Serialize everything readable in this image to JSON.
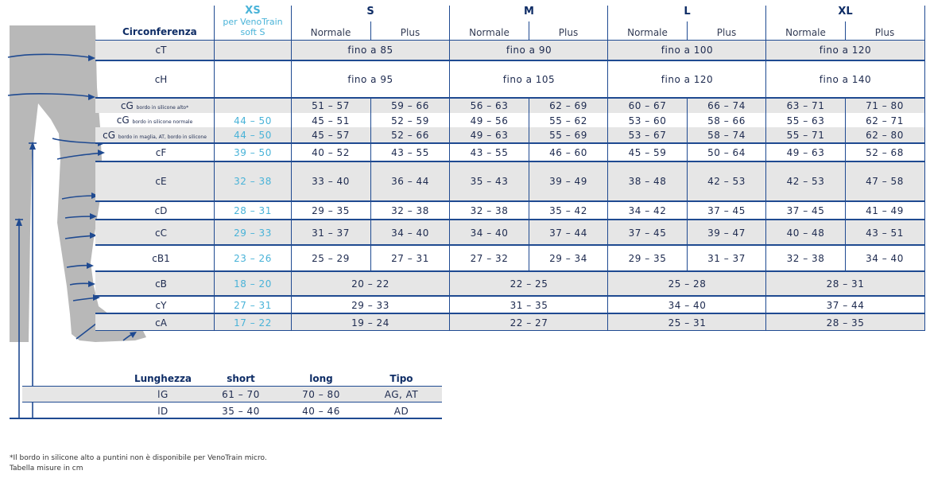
{
  "header": {
    "circonferenza": "Circonferenza",
    "xs": {
      "label": "XS",
      "sub1": "per VenoTrain",
      "sub2": "soft S"
    },
    "sizes": [
      "S",
      "M",
      "L",
      "XL"
    ],
    "normale": "Normale",
    "plus": "Plus"
  },
  "rows": [
    {
      "label": "cT",
      "xs": "",
      "cells": [
        "fino a 85",
        "fino a 90",
        "fino a 100",
        "fino a 120"
      ]
    },
    {
      "label": "cH",
      "xs": "",
      "cells": [
        "fino a 95",
        "fino a 105",
        "fino a 120",
        "fino a 140"
      ]
    },
    {
      "label": "cG",
      "suffix": "bordo in silicone alto*",
      "xs": "",
      "cells": [
        "51 – 57",
        "59 – 66",
        "56 – 63",
        "62 – 69",
        "60 – 67",
        "66 – 74",
        "63 – 71",
        "71 – 80"
      ]
    },
    {
      "label": "cG",
      "suffix": "bordo in silicone normale",
      "xs": "44 – 50",
      "cells": [
        "45 – 51",
        "52 – 59",
        "49 – 56",
        "55 – 62",
        "53 – 60",
        "58 – 66",
        "55 – 63",
        "62 – 71"
      ]
    },
    {
      "label": "cG",
      "suffix": "bordo in maglia, AT, bordo in silicone",
      "xs": "44 – 50",
      "cells": [
        "45 – 57",
        "52 – 66",
        "49 – 63",
        "55 – 69",
        "53 – 67",
        "58 – 74",
        "55 – 71",
        "62 – 80"
      ]
    },
    {
      "label": "cF",
      "xs": "39 – 50",
      "cells": [
        "40 – 52",
        "43 – 55",
        "43 – 55",
        "46 – 60",
        "45 – 59",
        "50 – 64",
        "49 – 63",
        "52 – 68"
      ]
    },
    {
      "label": "cE",
      "xs": "32 – 38",
      "cells": [
        "33 – 40",
        "36 – 44",
        "35 – 43",
        "39 – 49",
        "38 – 48",
        "42 – 53",
        "42 – 53",
        "47 – 58"
      ]
    },
    {
      "label": "cD",
      "xs": "28 – 31",
      "cells": [
        "29 – 35",
        "32 – 38",
        "32 – 38",
        "35 – 42",
        "34 – 42",
        "37 – 45",
        "37 – 45",
        "41 – 49"
      ]
    },
    {
      "label": "cC",
      "xs": "29 – 33",
      "cells": [
        "31 – 37",
        "34 – 40",
        "34 – 40",
        "37 – 44",
        "37 – 45",
        "39 – 47",
        "40 – 48",
        "43 – 51"
      ]
    },
    {
      "label": "cB1",
      "xs": "23 – 26",
      "cells": [
        "25 – 29",
        "27 – 31",
        "27 – 32",
        "29 – 34",
        "29 – 35",
        "31 – 37",
        "32 – 38",
        "34 – 40"
      ]
    },
    {
      "label": "cB",
      "xs": "18 – 20",
      "cells": [
        "20 – 22",
        "22 – 25",
        "25 – 28",
        "28 – 31"
      ]
    },
    {
      "label": "cY",
      "xs": "27 – 31",
      "cells": [
        "29 – 33",
        "31 – 35",
        "34 – 40",
        "37 – 44"
      ]
    },
    {
      "label": "cA",
      "xs": "17 – 22",
      "cells": [
        "19 – 24",
        "22 – 27",
        "25 – 31",
        "28 – 35"
      ]
    }
  ],
  "lengths": {
    "headers": [
      "Lunghezza",
      "short",
      "long",
      "Tipo"
    ],
    "rows": [
      {
        "label": "lG",
        "short": "61 – 70",
        "long": "70 – 80",
        "tipo": "AG, AT"
      },
      {
        "label": "lD",
        "short": "35 – 40",
        "long": "40 – 46",
        "tipo": "AD"
      }
    ]
  },
  "footnotes": {
    "line1": "*Il bordo in silicone alto a puntini non è disponibile per VenoTrain micro.",
    "line2": "Tabella misure in cm"
  },
  "colors": {
    "navy": "#1f4a91",
    "xs_blue": "#49b3d8",
    "band_gray": "#e6e6e6",
    "leg_gray": "#b8b8b8"
  }
}
